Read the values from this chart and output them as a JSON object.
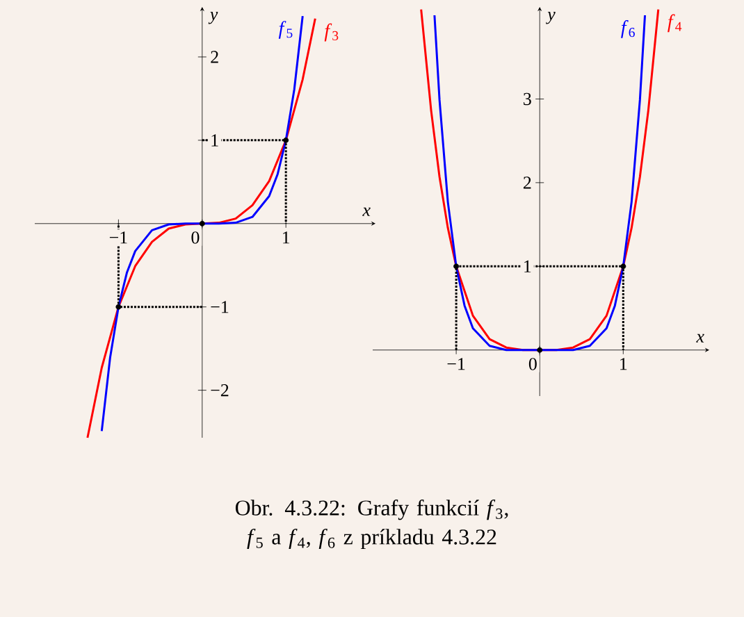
{
  "chart_data": [
    {
      "type": "line",
      "xlabel": "x",
      "ylabel": "y",
      "xlim": [
        -2.0,
        2.07
      ],
      "ylim": [
        -2.57,
        2.6
      ],
      "xticks": [
        {
          "value": -1,
          "label": "−1"
        },
        0,
        1
      ],
      "yticks": [
        {
          "value": -2,
          "label": "−2"
        },
        {
          "value": -1,
          "label": "−1"
        },
        1,
        2
      ],
      "series": [
        {
          "name": "*f*$_{3}$",
          "color": "#ff0000",
          "x": [
            -1.37,
            -1.2,
            -1,
            -0.8,
            -0.6,
            -0.4,
            -0.2,
            0,
            0.2,
            0.4,
            0.6,
            0.8,
            1,
            1.2,
            1.35
          ],
          "values": [
            -2.57,
            -1.73,
            -1,
            -0.51,
            -0.22,
            -0.06,
            -0.01,
            0,
            0.01,
            0.06,
            0.22,
            0.51,
            1,
            1.73,
            2.46
          ]
        },
        {
          "name": "*f*$_{5}$",
          "color": "#0000ff",
          "x": [
            -1.2,
            -1.1,
            -1,
            -0.9,
            -0.8,
            -0.6,
            -0.4,
            -0.2,
            0,
            0.2,
            0.4,
            0.6,
            0.8,
            0.9,
            1,
            1.1,
            1.2
          ],
          "values": [
            -2.49,
            -1.61,
            -1,
            -0.59,
            -0.33,
            -0.08,
            -0.01,
            0,
            0,
            0,
            0.01,
            0.08,
            0.33,
            0.59,
            1,
            1.61,
            2.49
          ]
        },
        {
          "type": "line",
          "line_style": "dotted",
          "color": "#000000",
          "x": [
            0,
            1,
            1
          ],
          "values": [
            1,
            1,
            0
          ]
        },
        {
          "type": "line",
          "line_style": "dotted",
          "color": "#000000",
          "x": [
            0,
            -1,
            -1
          ],
          "values": [
            -1,
            -1,
            0
          ]
        },
        {
          "type": "scatter",
          "marker": "circle",
          "color": "#000000",
          "x": [
            -1,
            0,
            1
          ],
          "values": [
            -1,
            0,
            1
          ]
        }
      ],
      "annotations": [
        "Obr. 4.3.22: Grafy funkcií *f*$_{3}$, *f*$_{5}$ a *f*$_{4}$, *f*$_{6}$ z príkladu 4.3.22"
      ]
    },
    {
      "type": "line",
      "xlabel": "x",
      "ylabel": "y",
      "xlim": [
        -2.0,
        2.03
      ],
      "ylim": [
        -0.55,
        4.1
      ],
      "xticks": [
        {
          "value": -1,
          "label": "−1"
        },
        0,
        1
      ],
      "yticks": [
        1,
        2,
        3
      ],
      "series": [
        {
          "name": "*f*$_{4}$",
          "color": "#ff0000",
          "x": [
            -1.42,
            -1.3,
            -1.2,
            -1.1,
            -1,
            -0.8,
            -0.6,
            -0.4,
            -0.2,
            0,
            0.2,
            0.4,
            0.6,
            0.8,
            1,
            1.1,
            1.2,
            1.3,
            1.42
          ],
          "values": [
            4.07,
            2.86,
            2.07,
            1.46,
            1,
            0.41,
            0.13,
            0.03,
            0,
            0,
            0,
            0.03,
            0.13,
            0.41,
            1,
            1.46,
            2.07,
            2.86,
            4.07
          ]
        },
        {
          "name": "*f*$_{6}$",
          "color": "#0000ff",
          "x": [
            -1.26,
            -1.2,
            -1.1,
            -1,
            -0.9,
            -0.8,
            -0.6,
            -0.4,
            0,
            0.4,
            0.6,
            0.8,
            0.9,
            1,
            1.1,
            1.2,
            1.26
          ],
          "values": [
            4.0,
            2.99,
            1.77,
            1,
            0.53,
            0.26,
            0.05,
            0,
            0,
            0,
            0.05,
            0.26,
            0.53,
            1,
            1.77,
            2.99,
            4.0
          ]
        },
        {
          "type": "line",
          "line_style": "dotted",
          "color": "#000000",
          "x": [
            -1,
            -1,
            1,
            1
          ],
          "values": [
            0,
            1,
            1,
            0
          ]
        },
        {
          "type": "scatter",
          "marker": "circle",
          "color": "#000000",
          "x": [
            -1,
            0,
            1
          ],
          "values": [
            1,
            0,
            1
          ]
        }
      ]
    }
  ]
}
